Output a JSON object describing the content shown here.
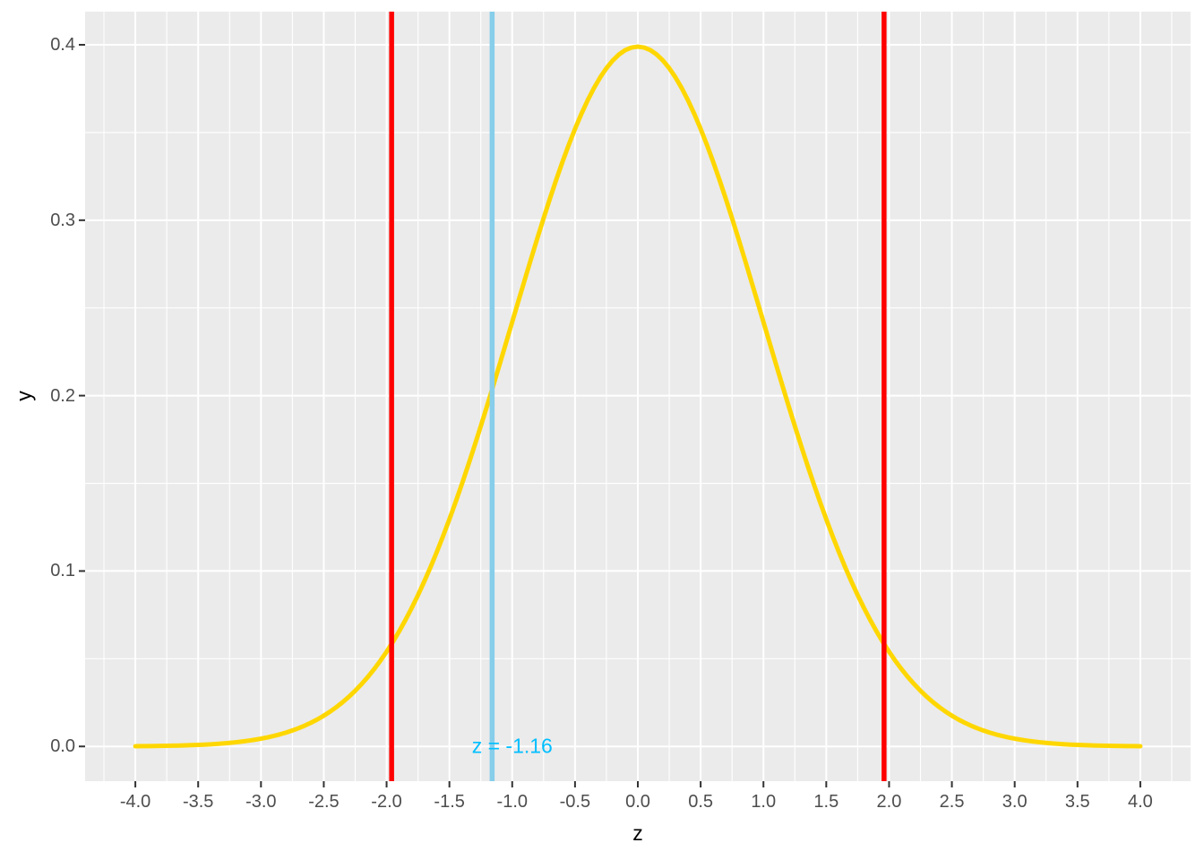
{
  "chart_data": {
    "type": "line",
    "title": "",
    "xlabel": "z",
    "ylabel": "y",
    "x_range": [
      -4.4,
      4.4
    ],
    "y_range": [
      -0.0198,
      0.4189
    ],
    "grid": true,
    "legend": "none",
    "x_ticks": {
      "values": [
        -4.0,
        -3.5,
        -3.0,
        -2.5,
        -2.0,
        -1.5,
        -1.0,
        -0.5,
        0.0,
        0.5,
        1.0,
        1.5,
        2.0,
        2.5,
        3.0,
        3.5,
        4.0
      ],
      "labels": [
        "-4.0",
        "-3.5",
        "-3.0",
        "-2.5",
        "-2.0",
        "-1.5",
        "-1.0",
        "-0.5",
        "0.0",
        "0.5",
        "1.0",
        "1.5",
        "2.0",
        "2.5",
        "3.0",
        "3.5",
        "4.0"
      ]
    },
    "y_ticks": {
      "values": [
        0.0,
        0.1,
        0.2,
        0.3,
        0.4
      ],
      "labels": [
        "0.0",
        "0.1",
        "0.2",
        "0.3",
        "0.4"
      ]
    },
    "x_minor": [
      -4.25,
      -3.75,
      -3.25,
      -2.75,
      -2.25,
      -1.75,
      -1.25,
      -0.75,
      -0.25,
      0.25,
      0.75,
      1.25,
      1.75,
      2.25,
      2.75,
      3.25,
      3.75,
      4.25
    ],
    "y_minor": [
      0.05,
      0.15,
      0.25,
      0.35
    ],
    "curve": {
      "name": "standard-normal-pdf",
      "distribution": "normal",
      "mean": 0,
      "sd": 1,
      "x_min": -4,
      "x_max": 4,
      "step": 0.05,
      "color": "#FFD700",
      "stroke_width": 5
    },
    "sampled_points": {
      "z": [
        -4.0,
        -3.5,
        -3.0,
        -2.5,
        -2.0,
        -1.5,
        -1.0,
        -0.5,
        0.0,
        0.5,
        1.0,
        1.5,
        2.0,
        2.5,
        3.0,
        3.5,
        4.0
      ],
      "density": [
        0.00013,
        0.00087,
        0.00443,
        0.01753,
        0.05399,
        0.12952,
        0.24197,
        0.35207,
        0.39894,
        0.35207,
        0.24197,
        0.12952,
        0.05399,
        0.01753,
        0.00443,
        0.00087,
        0.00013
      ]
    },
    "vlines": [
      {
        "name": "critical-value-lower-line",
        "x": -1.96,
        "color": "#FF0000",
        "stroke_width": 5.5
      },
      {
        "name": "critical-value-upper-line",
        "x": 1.96,
        "color": "#FF0000",
        "stroke_width": 5.5
      },
      {
        "name": "observed-z-line",
        "x": -1.16,
        "color": "#87CEEB",
        "stroke_width": 5.5
      }
    ],
    "annotation": {
      "text": "z = -1.16",
      "x": -1.0,
      "y": 0.0,
      "color": "#00BFFF"
    },
    "colors": {
      "panel_bg": "#EBEBEB",
      "grid": "#FFFFFF",
      "tick": "#333333",
      "tick_label": "#4D4D4D",
      "axis_title": "#000000"
    }
  }
}
